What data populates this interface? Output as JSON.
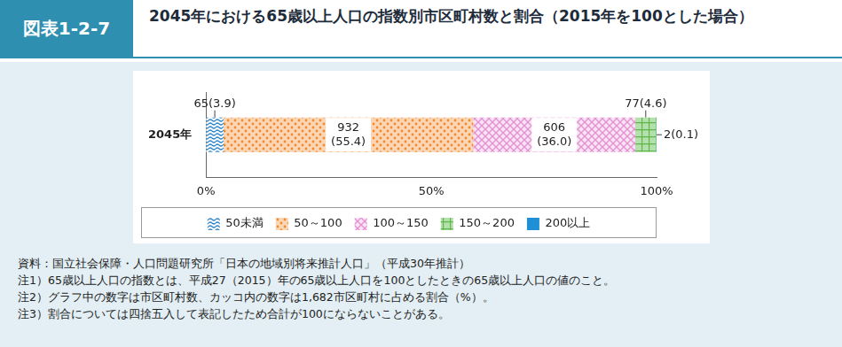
{
  "header": {
    "label": "図表1-2-7",
    "title": "2045年における65歳以上人口の指数別市区町村数と割合（2015年を100とした場合）"
  },
  "chart_data": {
    "type": "bar",
    "orientation": "horizontal",
    "stacked": true,
    "grid": false,
    "legend": "bottom",
    "data_labels": true,
    "categories": [
      "2045年"
    ],
    "xlim": [
      0,
      100
    ],
    "xticks": [
      {
        "value": 0,
        "label": "0%"
      },
      {
        "value": 50,
        "label": "50%"
      },
      {
        "value": 100,
        "label": "100%"
      }
    ],
    "series": [
      {
        "name": "50未満",
        "color": "#2f86c9",
        "values": [
          3.9
        ],
        "value_labels": [
          "65(3.9)"
        ]
      },
      {
        "name": "50～100",
        "color": "#f08a2c",
        "values": [
          55.4
        ],
        "value_labels": [
          "932\n(55.4)"
        ]
      },
      {
        "name": "100～150",
        "color": "#e58fd3",
        "values": [
          36.0
        ],
        "value_labels": [
          "606\n(36.0)"
        ]
      },
      {
        "name": "150～200",
        "color": "#5cb848",
        "values": [
          4.6
        ],
        "value_labels": [
          "77(4.6)"
        ]
      },
      {
        "name": "200以上",
        "color": "#1f8fd6",
        "values": [
          0.1
        ],
        "value_labels": [
          "2(0.1)"
        ]
      }
    ]
  },
  "notes": [
    "資料：国立社会保障・人口問題研究所「日本の地域別将来推計人口」（平成30年推計）",
    "注1）65歳以上人口の指数とは、平成27（2015）年の65歳以上人口を100としたときの65歳以上人口の値のこと。",
    "注2）グラフ中の数字は市区町村数、カッコ内の数字は1,682市区町村に占める割合（%）。",
    "注3）割合については四捨五入して表記したため合計が100にならないことがある。"
  ]
}
